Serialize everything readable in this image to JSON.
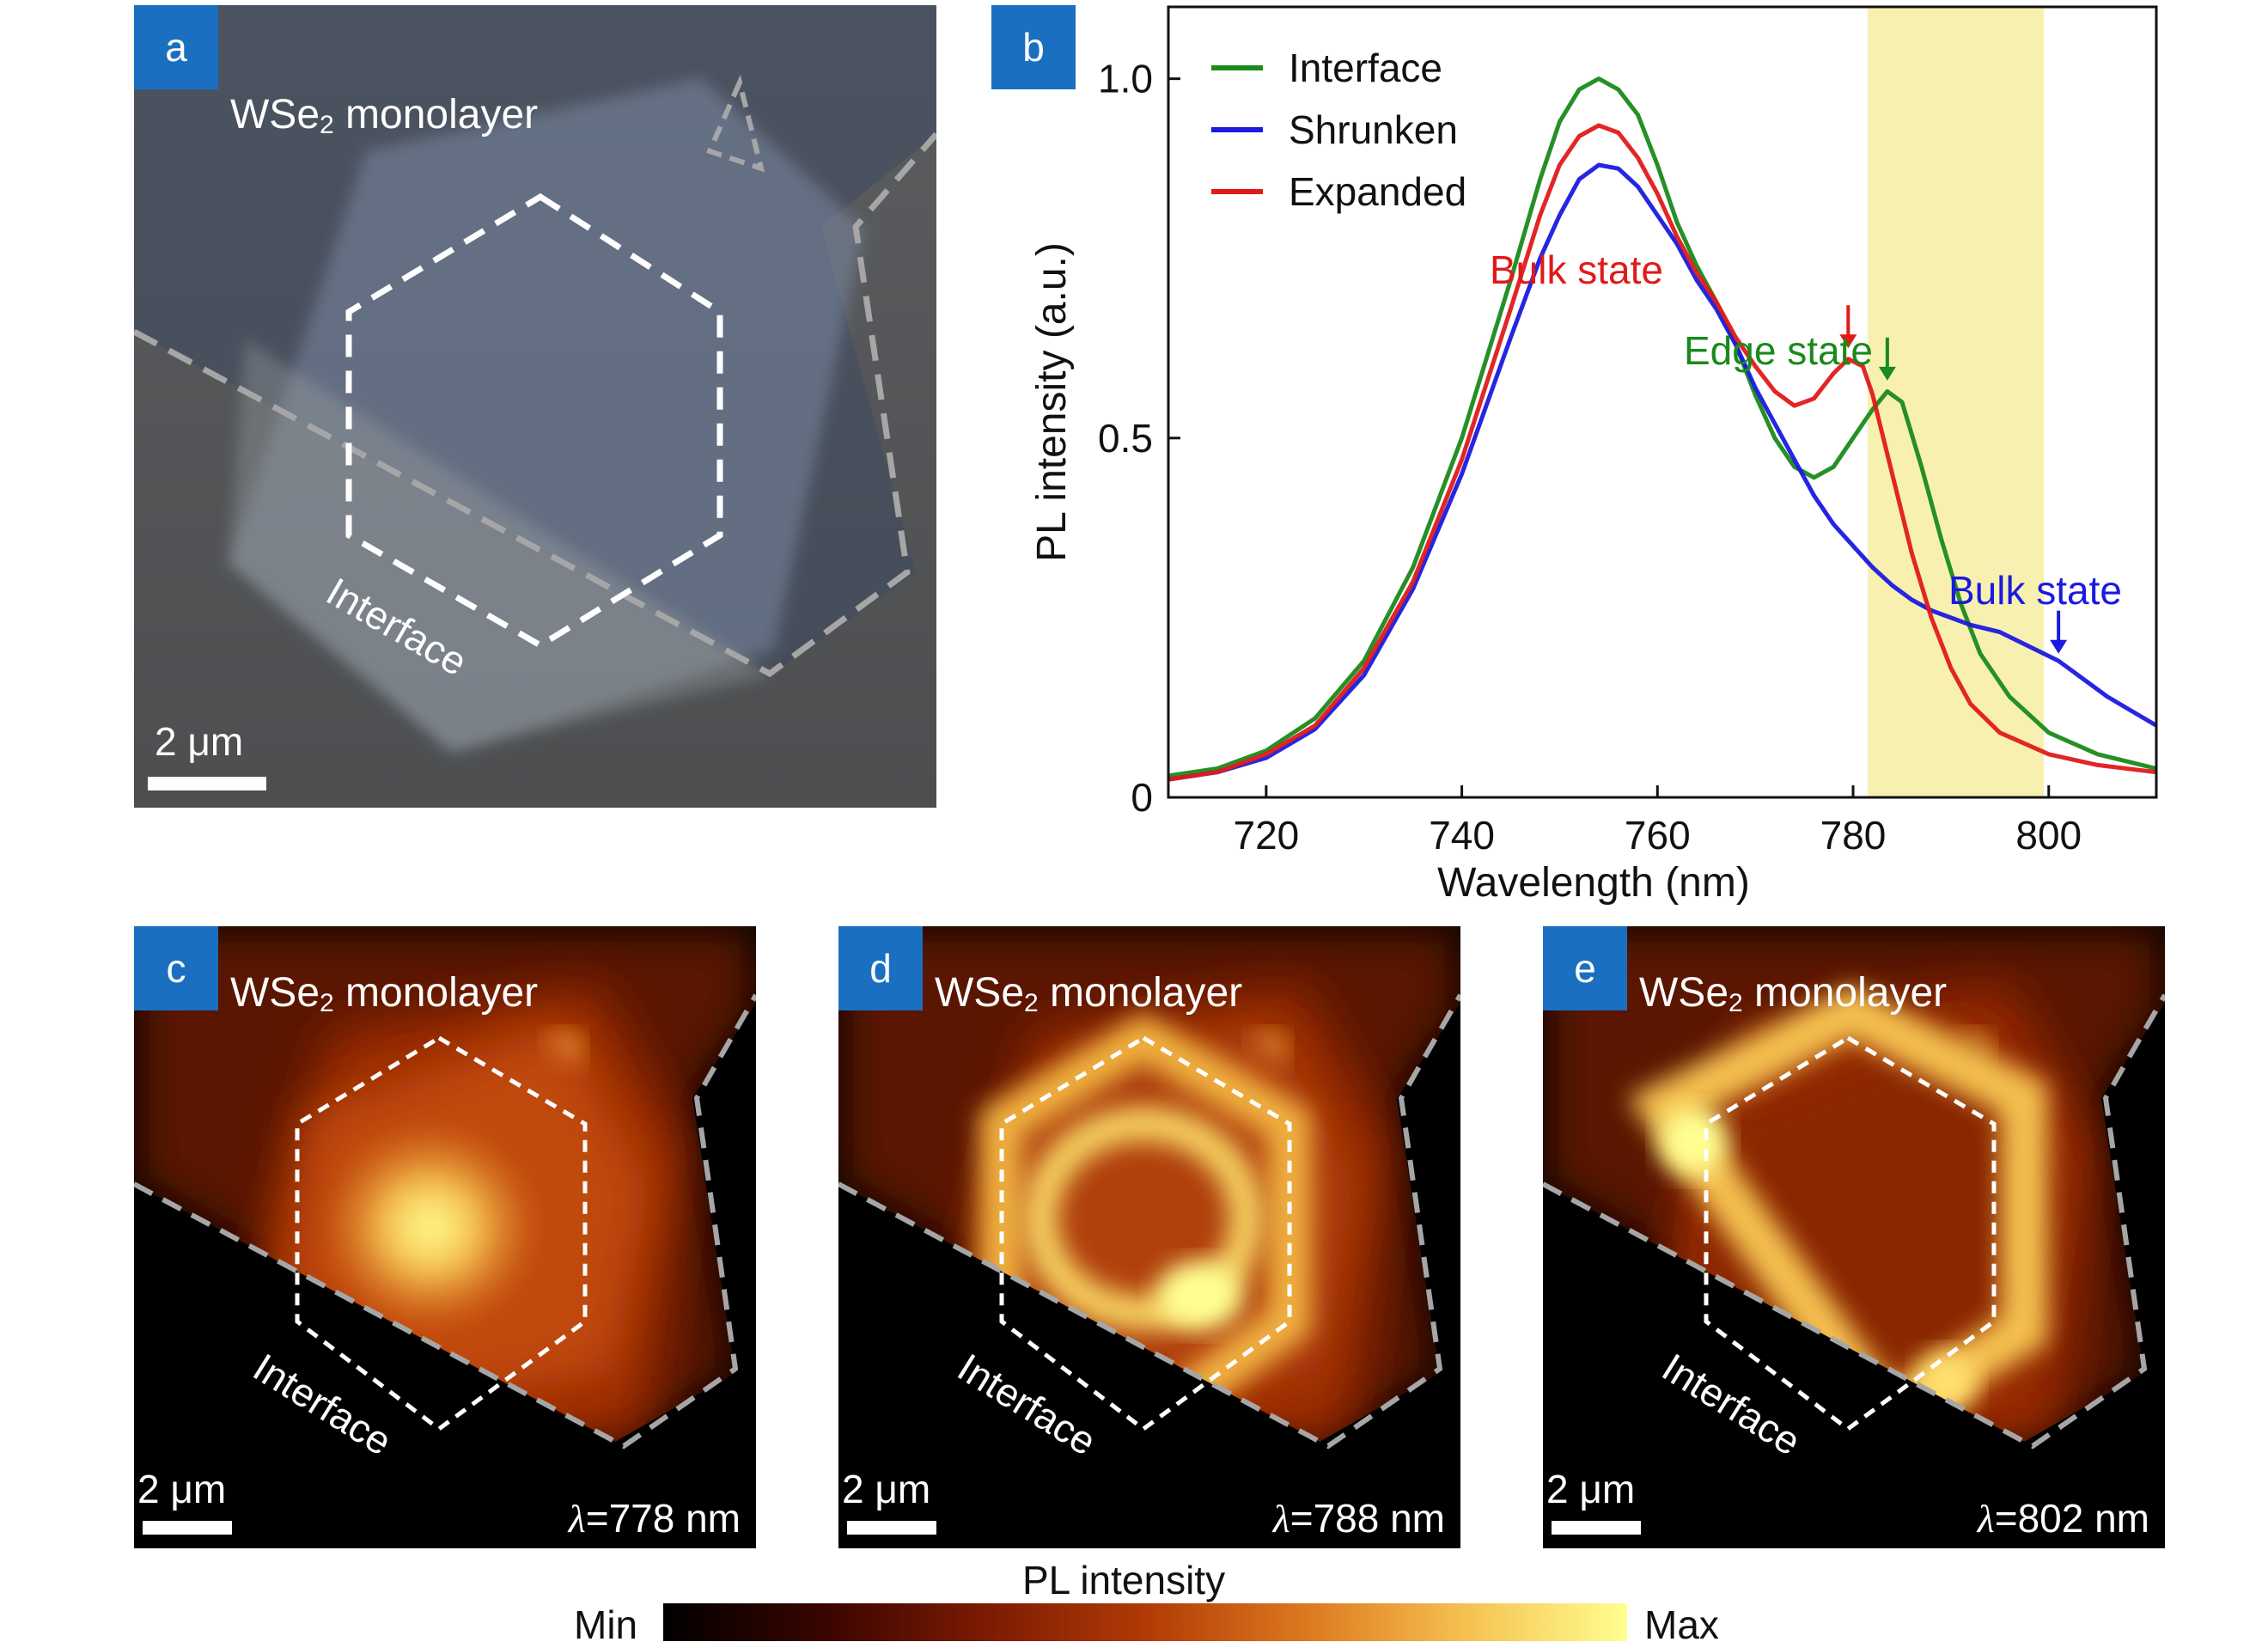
{
  "panels": {
    "a": {
      "tag": "a",
      "title_main": "WSe",
      "title_sub": "2",
      "title_rest": " monolayer",
      "interface_label": "Interface",
      "scale_bar": "2 μm"
    },
    "b": {
      "tag": "b"
    },
    "maps": [
      {
        "tag": "c",
        "title_main": "WSe",
        "title_sub": "2",
        "title_rest": " monolayer",
        "interface_label": "Interface",
        "scale_bar": "2 μm",
        "lambda_symbol": "λ",
        "lambda_value": "=778 nm",
        "pattern": "center"
      },
      {
        "tag": "d",
        "title_main": "WSe",
        "title_sub": "2",
        "title_rest": " monolayer",
        "interface_label": "Interface",
        "scale_bar": "2 μm",
        "lambda_symbol": "λ",
        "lambda_value": "=788 nm",
        "pattern": "ring"
      },
      {
        "tag": "e",
        "title_main": "WSe",
        "title_sub": "2",
        "title_rest": " monolayer",
        "interface_label": "Interface",
        "scale_bar": "2 μm",
        "lambda_symbol": "λ",
        "lambda_value": "=802 nm",
        "pattern": "edge"
      }
    ]
  },
  "colorbar": {
    "title": "PL intensity",
    "min_label": "Min",
    "max_label": "Max",
    "stops": [
      "#000000",
      "#3a0500",
      "#7a1a02",
      "#b13a05",
      "#dd7a20",
      "#f5c050",
      "#ffff90"
    ]
  },
  "chart_data": {
    "type": "line",
    "xlabel": "Wavelength (nm)",
    "ylabel": "PL intensity (a.u.)",
    "xlim": [
      710,
      811
    ],
    "ylim": [
      0,
      1.1
    ],
    "xticks": [
      720,
      740,
      760,
      780,
      800
    ],
    "yticks": [
      0,
      0.5,
      1.0
    ],
    "ytick_labels": [
      "0",
      "0.5",
      "1.0"
    ],
    "highlight_band": {
      "x": [
        781.5,
        799.5
      ],
      "color": "#f8f0b0"
    },
    "legend_position": "top-left",
    "series": [
      {
        "name": "Interface",
        "color": "#1a8a1a",
        "points": [
          [
            710,
            0.03
          ],
          [
            715,
            0.04
          ],
          [
            720,
            0.065
          ],
          [
            725,
            0.11
          ],
          [
            730,
            0.19
          ],
          [
            735,
            0.32
          ],
          [
            740,
            0.5
          ],
          [
            745,
            0.72
          ],
          [
            748,
            0.86
          ],
          [
            750,
            0.94
          ],
          [
            752,
            0.985
          ],
          [
            754,
            1.0
          ],
          [
            756,
            0.985
          ],
          [
            758,
            0.95
          ],
          [
            760,
            0.88
          ],
          [
            762,
            0.8
          ],
          [
            764,
            0.74
          ],
          [
            766,
            0.69
          ],
          [
            768,
            0.63
          ],
          [
            770,
            0.56
          ],
          [
            772,
            0.5
          ],
          [
            774,
            0.46
          ],
          [
            776,
            0.445
          ],
          [
            778,
            0.46
          ],
          [
            780,
            0.5
          ],
          [
            782,
            0.54
          ],
          [
            783.5,
            0.565
          ],
          [
            785,
            0.55
          ],
          [
            787,
            0.46
          ],
          [
            789,
            0.36
          ],
          [
            791,
            0.27
          ],
          [
            793,
            0.2
          ],
          [
            796,
            0.14
          ],
          [
            800,
            0.09
          ],
          [
            805,
            0.06
          ],
          [
            811,
            0.04
          ]
        ]
      },
      {
        "name": "Shrunken",
        "color": "#1a1ae0",
        "points": [
          [
            710,
            0.025
          ],
          [
            715,
            0.035
          ],
          [
            720,
            0.055
          ],
          [
            725,
            0.095
          ],
          [
            730,
            0.17
          ],
          [
            735,
            0.29
          ],
          [
            740,
            0.45
          ],
          [
            745,
            0.64
          ],
          [
            748,
            0.75
          ],
          [
            750,
            0.81
          ],
          [
            752,
            0.86
          ],
          [
            754,
            0.88
          ],
          [
            756,
            0.875
          ],
          [
            758,
            0.85
          ],
          [
            760,
            0.81
          ],
          [
            762,
            0.77
          ],
          [
            764,
            0.72
          ],
          [
            766,
            0.68
          ],
          [
            768,
            0.63
          ],
          [
            770,
            0.57
          ],
          [
            772,
            0.52
          ],
          [
            774,
            0.47
          ],
          [
            776,
            0.42
          ],
          [
            778,
            0.38
          ],
          [
            780,
            0.35
          ],
          [
            782,
            0.32
          ],
          [
            784,
            0.295
          ],
          [
            786,
            0.275
          ],
          [
            788,
            0.26
          ],
          [
            790,
            0.25
          ],
          [
            792,
            0.24
          ],
          [
            795,
            0.23
          ],
          [
            798,
            0.21
          ],
          [
            801,
            0.19
          ],
          [
            803,
            0.17
          ],
          [
            806,
            0.14
          ],
          [
            811,
            0.1
          ]
        ]
      },
      {
        "name": "Expanded",
        "color": "#e01a1a",
        "points": [
          [
            710,
            0.025
          ],
          [
            715,
            0.035
          ],
          [
            720,
            0.06
          ],
          [
            725,
            0.1
          ],
          [
            730,
            0.18
          ],
          [
            735,
            0.3
          ],
          [
            740,
            0.47
          ],
          [
            745,
            0.68
          ],
          [
            748,
            0.81
          ],
          [
            750,
            0.88
          ],
          [
            752,
            0.92
          ],
          [
            754,
            0.935
          ],
          [
            756,
            0.925
          ],
          [
            758,
            0.89
          ],
          [
            760,
            0.84
          ],
          [
            762,
            0.78
          ],
          [
            764,
            0.73
          ],
          [
            766,
            0.69
          ],
          [
            768,
            0.64
          ],
          [
            770,
            0.6
          ],
          [
            772,
            0.565
          ],
          [
            774,
            0.545
          ],
          [
            776,
            0.555
          ],
          [
            778,
            0.59
          ],
          [
            779.5,
            0.61
          ],
          [
            781,
            0.6
          ],
          [
            782,
            0.56
          ],
          [
            784,
            0.45
          ],
          [
            786,
            0.34
          ],
          [
            788,
            0.25
          ],
          [
            790,
            0.18
          ],
          [
            792,
            0.13
          ],
          [
            795,
            0.09
          ],
          [
            800,
            0.06
          ],
          [
            805,
            0.045
          ],
          [
            811,
            0.035
          ]
        ]
      }
    ],
    "annotations": [
      {
        "text": "Bulk state",
        "color": "#e01a1a",
        "arrow_x": 779.5,
        "arrow_y": 0.625
      },
      {
        "text": "Edge state",
        "color": "#1a8a1a",
        "arrow_x": 783.5,
        "arrow_y": 0.58
      },
      {
        "text": "Bulk state",
        "color": "#1a1ae0",
        "arrow_x": 801,
        "arrow_y": 0.2
      }
    ]
  }
}
